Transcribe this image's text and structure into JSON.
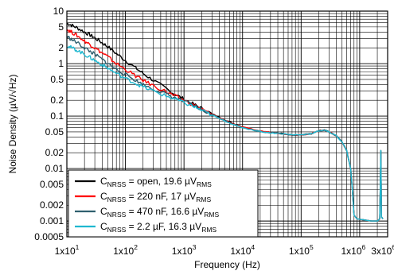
{
  "chart_data": {
    "type": "line",
    "xlabel": "Frequency (Hz)",
    "ylabel": "Noise Density (µV/√Hz)",
    "xscale": "log",
    "yscale": "log",
    "xlim": [
      10,
      3000000
    ],
    "ylim": [
      0.0005,
      10
    ],
    "grid": true,
    "legend_position": "bottom-left",
    "x_ticks": [
      {
        "value": 10,
        "base": "1x10",
        "exp": "1"
      },
      {
        "value": 100,
        "base": "1x10",
        "exp": "2"
      },
      {
        "value": 1000,
        "base": "1x10",
        "exp": "3"
      },
      {
        "value": 10000,
        "base": "1x10",
        "exp": "4"
      },
      {
        "value": 100000,
        "base": "1x10",
        "exp": "5"
      },
      {
        "value": 1000000,
        "base": "1x10",
        "exp": "6"
      },
      {
        "value": 3000000,
        "base": "3x10",
        "exp": "6"
      }
    ],
    "y_ticks": [
      {
        "value": 10,
        "label": "10"
      },
      {
        "value": 5,
        "label": "5"
      },
      {
        "value": 2,
        "label": "2"
      },
      {
        "value": 1,
        "label": "1"
      },
      {
        "value": 0.5,
        "label": "0.5"
      },
      {
        "value": 0.2,
        "label": "0.2"
      },
      {
        "value": 0.1,
        "label": "0.1"
      },
      {
        "value": 0.05,
        "label": "0.05"
      },
      {
        "value": 0.02,
        "label": "0.02"
      },
      {
        "value": 0.01,
        "label": "0.01"
      },
      {
        "value": 0.005,
        "label": "0.005"
      },
      {
        "value": 0.002,
        "label": "0.002"
      },
      {
        "value": 0.001,
        "label": "0.001"
      },
      {
        "value": 0.0005,
        "label": "0.0005"
      }
    ],
    "series": [
      {
        "legend": {
          "pre": "C",
          "sub": "NRSS",
          "mid": " = open, 19.6 µV",
          "sub2": "RMS"
        },
        "color": "#000000",
        "points": [
          [
            10,
            5.9
          ],
          [
            12,
            5.4
          ],
          [
            15,
            4.8
          ],
          [
            20,
            4.0
          ],
          [
            25,
            3.5
          ],
          [
            30,
            3.1
          ],
          [
            40,
            2.5
          ],
          [
            50,
            2.1
          ],
          [
            70,
            1.55
          ],
          [
            100,
            1.15
          ],
          [
            150,
            0.82
          ],
          [
            200,
            0.65
          ],
          [
            300,
            0.48
          ],
          [
            500,
            0.33
          ],
          [
            700,
            0.26
          ],
          [
            1000,
            0.21
          ],
          [
            1500,
            0.165
          ],
          [
            2000,
            0.14
          ],
          [
            3000,
            0.11
          ],
          [
            5000,
            0.085
          ],
          [
            7000,
            0.072
          ],
          [
            10000,
            0.062
          ],
          [
            20000,
            0.052
          ],
          [
            30000,
            0.049
          ],
          [
            50000,
            0.046
          ],
          [
            70000,
            0.044
          ],
          [
            100000,
            0.044
          ],
          [
            150000,
            0.046
          ],
          [
            200000,
            0.052
          ],
          [
            250000,
            0.054
          ],
          [
            300000,
            0.05
          ],
          [
            400000,
            0.042
          ],
          [
            500000,
            0.032
          ],
          [
            600000,
            0.022
          ],
          [
            700000,
            0.01
          ],
          [
            750000,
            0.004
          ],
          [
            800000,
            0.0013
          ],
          [
            900000,
            0.0011
          ],
          [
            1200000,
            0.00105
          ],
          [
            1600000,
            0.001
          ],
          [
            2000000,
            0.001
          ],
          [
            2200000,
            0.0011
          ],
          [
            2300000,
            0.022
          ],
          [
            2350000,
            0.0012
          ],
          [
            2500000,
            0.0011
          ]
        ]
      },
      {
        "legend": {
          "pre": "C",
          "sub": "NRSS",
          "mid": " = 220 nF, 17 µV",
          "sub2": "RMS"
        },
        "color": "#ff0000",
        "points": [
          [
            10,
            4.5
          ],
          [
            12,
            4.0
          ],
          [
            15,
            3.4
          ],
          [
            20,
            2.7
          ],
          [
            25,
            2.3
          ],
          [
            30,
            2.0
          ],
          [
            40,
            1.6
          ],
          [
            50,
            1.35
          ],
          [
            70,
            1.0
          ],
          [
            100,
            0.78
          ],
          [
            150,
            0.58
          ],
          [
            200,
            0.48
          ],
          [
            300,
            0.38
          ],
          [
            500,
            0.29
          ],
          [
            700,
            0.24
          ],
          [
            1000,
            0.2
          ],
          [
            1500,
            0.16
          ],
          [
            2000,
            0.135
          ],
          [
            3000,
            0.108
          ],
          [
            5000,
            0.083
          ],
          [
            7000,
            0.071
          ],
          [
            10000,
            0.061
          ],
          [
            20000,
            0.052
          ],
          [
            30000,
            0.049
          ],
          [
            50000,
            0.046
          ],
          [
            70000,
            0.044
          ],
          [
            100000,
            0.044
          ],
          [
            150000,
            0.046
          ],
          [
            200000,
            0.052
          ],
          [
            250000,
            0.054
          ],
          [
            300000,
            0.05
          ],
          [
            400000,
            0.042
          ],
          [
            500000,
            0.032
          ],
          [
            600000,
            0.022
          ],
          [
            700000,
            0.01
          ],
          [
            750000,
            0.004
          ],
          [
            800000,
            0.0013
          ],
          [
            900000,
            0.0011
          ],
          [
            1200000,
            0.00105
          ],
          [
            1600000,
            0.001
          ],
          [
            2000000,
            0.001
          ],
          [
            2200000,
            0.0011
          ],
          [
            2300000,
            0.02
          ],
          [
            2350000,
            0.0012
          ],
          [
            2500000,
            0.0011
          ]
        ]
      },
      {
        "legend": {
          "pre": "C",
          "sub": "NRSS",
          "mid": " = 470 nF, 16.6 µV",
          "sub2": "RMS"
        },
        "color": "#2f5f6f",
        "points": [
          [
            10,
            3.3
          ],
          [
            12,
            2.9
          ],
          [
            15,
            2.5
          ],
          [
            20,
            2.0
          ],
          [
            25,
            1.7
          ],
          [
            30,
            1.5
          ],
          [
            40,
            1.2
          ],
          [
            50,
            1.0
          ],
          [
            70,
            0.78
          ],
          [
            100,
            0.62
          ],
          [
            150,
            0.48
          ],
          [
            200,
            0.4
          ],
          [
            300,
            0.33
          ],
          [
            500,
            0.26
          ],
          [
            700,
            0.22
          ],
          [
            1000,
            0.19
          ],
          [
            1500,
            0.155
          ],
          [
            2000,
            0.132
          ],
          [
            3000,
            0.106
          ],
          [
            5000,
            0.082
          ],
          [
            7000,
            0.07
          ],
          [
            10000,
            0.06
          ],
          [
            20000,
            0.051
          ],
          [
            30000,
            0.048
          ],
          [
            50000,
            0.046
          ],
          [
            70000,
            0.044
          ],
          [
            100000,
            0.044
          ],
          [
            150000,
            0.046
          ],
          [
            200000,
            0.052
          ],
          [
            250000,
            0.054
          ],
          [
            300000,
            0.05
          ],
          [
            400000,
            0.042
          ],
          [
            500000,
            0.032
          ],
          [
            600000,
            0.022
          ],
          [
            700000,
            0.01
          ],
          [
            750000,
            0.004
          ],
          [
            800000,
            0.0013
          ],
          [
            900000,
            0.0011
          ],
          [
            1200000,
            0.00105
          ],
          [
            1600000,
            0.001
          ],
          [
            2000000,
            0.001
          ],
          [
            2200000,
            0.0011
          ],
          [
            2300000,
            0.021
          ],
          [
            2350000,
            0.0012
          ],
          [
            2500000,
            0.0011
          ]
        ]
      },
      {
        "legend": {
          "pre": "C",
          "sub": "NRSS",
          "mid": " = 2.2 µF, 16.3 µV",
          "sub2": "RMS"
        },
        "color": "#1fb8d0",
        "points": [
          [
            10,
            2.2
          ],
          [
            12,
            2.0
          ],
          [
            15,
            1.8
          ],
          [
            20,
            1.5
          ],
          [
            25,
            1.3
          ],
          [
            30,
            1.15
          ],
          [
            40,
            0.95
          ],
          [
            50,
            0.82
          ],
          [
            70,
            0.65
          ],
          [
            100,
            0.52
          ],
          [
            150,
            0.42
          ],
          [
            200,
            0.36
          ],
          [
            300,
            0.3
          ],
          [
            500,
            0.24
          ],
          [
            700,
            0.21
          ],
          [
            1000,
            0.18
          ],
          [
            1500,
            0.15
          ],
          [
            2000,
            0.128
          ],
          [
            3000,
            0.104
          ],
          [
            5000,
            0.081
          ],
          [
            7000,
            0.069
          ],
          [
            10000,
            0.06
          ],
          [
            20000,
            0.051
          ],
          [
            30000,
            0.048
          ],
          [
            50000,
            0.046
          ],
          [
            70000,
            0.044
          ],
          [
            100000,
            0.044
          ],
          [
            150000,
            0.046
          ],
          [
            200000,
            0.052
          ],
          [
            250000,
            0.054
          ],
          [
            300000,
            0.05
          ],
          [
            400000,
            0.042
          ],
          [
            500000,
            0.032
          ],
          [
            600000,
            0.022
          ],
          [
            700000,
            0.01
          ],
          [
            750000,
            0.004
          ],
          [
            800000,
            0.0013
          ],
          [
            900000,
            0.0011
          ],
          [
            1200000,
            0.00105
          ],
          [
            1600000,
            0.001
          ],
          [
            2000000,
            0.001
          ],
          [
            2200000,
            0.0011
          ],
          [
            2300000,
            0.022
          ],
          [
            2350000,
            0.0012
          ],
          [
            2500000,
            0.0011
          ]
        ]
      }
    ]
  }
}
